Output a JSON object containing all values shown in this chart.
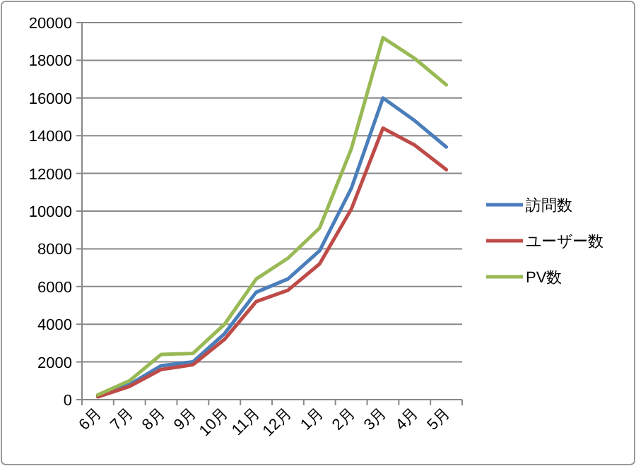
{
  "chart_data": {
    "type": "line",
    "categories": [
      "6月",
      "7月",
      "8月",
      "9月",
      "10月",
      "11月",
      "12月",
      "1月",
      "2月",
      "3月",
      "4月",
      "5月"
    ],
    "series": [
      {
        "name": "訪問数",
        "color": "#4a7ebb",
        "values": [
          200,
          800,
          1800,
          2000,
          3500,
          5700,
          6400,
          7900,
          11200,
          16000,
          14800,
          13400
        ]
      },
      {
        "name": "ユーザー数",
        "color": "#be4b48",
        "values": [
          150,
          700,
          1600,
          1850,
          3200,
          5200,
          5800,
          7200,
          10100,
          14400,
          13500,
          12200
        ]
      },
      {
        "name": "PV数",
        "color": "#98b954",
        "values": [
          250,
          1000,
          2400,
          2450,
          4000,
          6400,
          7500,
          9100,
          13300,
          19200,
          18100,
          16700
        ]
      }
    ],
    "ylim": [
      0,
      20000
    ],
    "yticks": [
      0,
      2000,
      4000,
      6000,
      8000,
      10000,
      12000,
      14000,
      16000,
      18000,
      20000
    ],
    "grid": "y",
    "legend": "right",
    "marker": "none",
    "line_style": "solid"
  }
}
